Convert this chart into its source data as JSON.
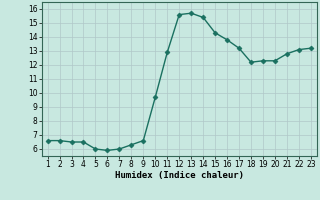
{
  "x": [
    1,
    2,
    3,
    4,
    5,
    6,
    7,
    8,
    9,
    10,
    11,
    12,
    13,
    14,
    15,
    16,
    17,
    18,
    19,
    20,
    21,
    22,
    23
  ],
  "y": [
    6.6,
    6.6,
    6.5,
    6.5,
    6.0,
    5.9,
    6.0,
    6.3,
    6.6,
    9.7,
    12.9,
    15.6,
    15.7,
    15.4,
    14.3,
    13.8,
    13.2,
    12.2,
    12.3,
    12.3,
    12.8,
    13.1,
    13.2
  ],
  "line_color": "#1a7060",
  "marker": "D",
  "marker_size": 2.5,
  "background_color": "#c8e8e0",
  "grid_color": "#b0c8c8",
  "xlabel": "Humidex (Indice chaleur)",
  "xlim": [
    0.5,
    23.5
  ],
  "ylim": [
    5.5,
    16.5
  ],
  "yticks": [
    6,
    7,
    8,
    9,
    10,
    11,
    12,
    13,
    14,
    15,
    16
  ],
  "xticks": [
    1,
    2,
    3,
    4,
    5,
    6,
    7,
    8,
    9,
    10,
    11,
    12,
    13,
    14,
    15,
    16,
    17,
    18,
    19,
    20,
    21,
    22,
    23
  ],
  "tick_fontsize": 5.5,
  "label_fontsize": 6.5,
  "linewidth": 1.0
}
